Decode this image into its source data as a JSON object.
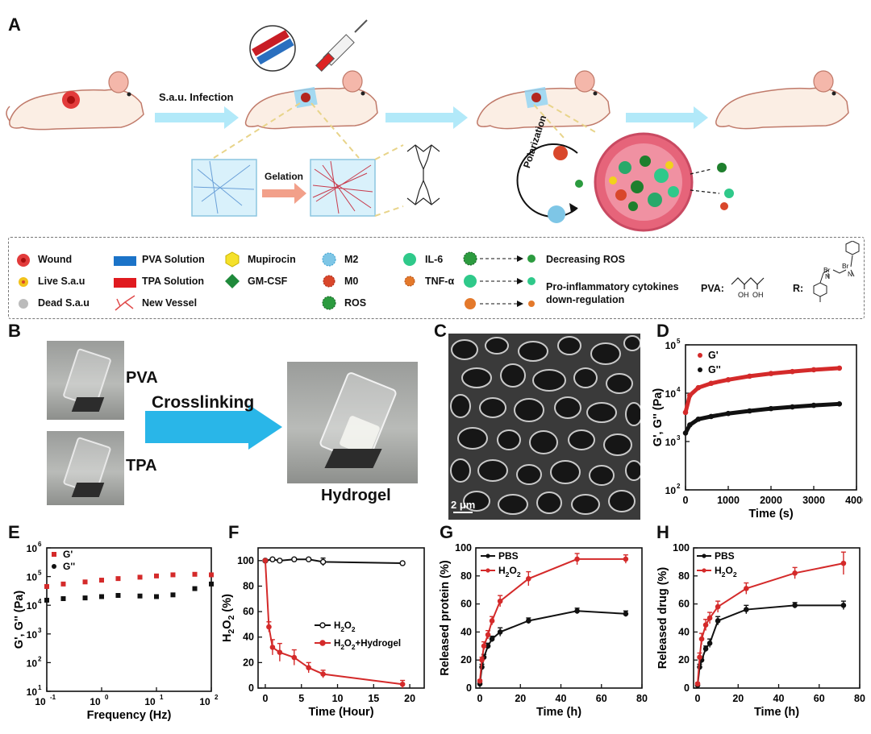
{
  "panels": {
    "A": "A",
    "B": "B",
    "C": "C",
    "D": "D",
    "E": "E",
    "F": "F",
    "G": "G",
    "H": "H"
  },
  "schematic": {
    "infection": "S.a.u. Infection",
    "gelation": "Gelation",
    "polarization": "Polarization"
  },
  "legend": {
    "wound": "Wound",
    "live": "Live S.a.u",
    "dead": "Dead S.a.u",
    "pva_sol": "PVA Solution",
    "tpa_sol": "TPA Solution",
    "vessel": "New Vessel",
    "mupirocin": "Mupirocin",
    "gmcsf": "GM-CSF",
    "m2": "M2",
    "m0": "M0",
    "ros": "ROS",
    "il6": "IL-6",
    "tnf": "TNF-α",
    "dec_ros": "Decreasing  ROS",
    "proinf1": "Pro-inflammatory cytokines",
    "proinf2": "down-regulation",
    "pva_label": "PVA:",
    "r_label": "R:",
    "oh1": "OH",
    "oh2": "OH",
    "br1": "Br",
    "br2": "Br",
    "n1": "N",
    "n2": "N"
  },
  "panelB": {
    "pva": "PVA",
    "tpa": "TPA",
    "crosslinking": "Crosslinking",
    "hydrogel": "Hydrogel"
  },
  "panelC": {
    "scale": "2 μm"
  },
  "colors": {
    "red": "#d42a2a",
    "black": "#111111",
    "arrow": "#29b6e8",
    "legendBorder": "#777777"
  },
  "chart_data": [
    {
      "id": "D",
      "type": "line",
      "xlabel": "Time (s)",
      "ylabel": "G', G'' (Pa)",
      "yscale": "log",
      "xlim": [
        0,
        4000
      ],
      "ylim": [
        100,
        100000
      ],
      "xticks": [
        "0",
        "1000",
        "2000",
        "3000",
        "4000"
      ],
      "yticks": [
        "10",
        "10",
        "10",
        "10"
      ],
      "yexp": [
        "2",
        "3",
        "4",
        "5"
      ],
      "series": [
        {
          "name": "G'",
          "color": "#d42a2a",
          "x": [
            0,
            100,
            300,
            600,
            1000,
            1500,
            2000,
            2500,
            3000,
            3600
          ],
          "y": [
            4000,
            9000,
            13000,
            16000,
            19000,
            22500,
            25500,
            28000,
            30500,
            33000
          ]
        },
        {
          "name": "G''",
          "color": "#111111",
          "x": [
            0,
            100,
            300,
            600,
            1000,
            1500,
            2000,
            2500,
            3000,
            3600
          ],
          "y": [
            1500,
            2200,
            2900,
            3300,
            3800,
            4300,
            4800,
            5200,
            5600,
            6000
          ]
        }
      ]
    },
    {
      "id": "E",
      "type": "scatter",
      "xlabel": "Frequency (Hz)",
      "ylabel": "G', G'' (Pa)",
      "xscale": "log",
      "yscale": "log",
      "xlim": [
        0.1,
        100
      ],
      "ylim": [
        10,
        1000000
      ],
      "xticks": [
        "10",
        "10",
        "10",
        "10"
      ],
      "xexp": [
        "-1",
        "0",
        "1",
        "2"
      ],
      "yticks": [
        "10",
        "10",
        "10",
        "10",
        "10",
        "10"
      ],
      "yexp": [
        "1",
        "2",
        "3",
        "4",
        "5",
        "6"
      ],
      "series": [
        {
          "name": "G'",
          "color": "#d42a2a",
          "x": [
            0.1,
            0.2,
            0.5,
            1,
            2,
            5,
            10,
            20,
            50,
            100
          ],
          "y": [
            45000,
            55000,
            65000,
            75000,
            85000,
            95000,
            105000,
            115000,
            120000,
            115000
          ]
        },
        {
          "name": "G''",
          "color": "#111111",
          "x": [
            0.1,
            0.2,
            0.5,
            1,
            2,
            5,
            10,
            20,
            50,
            100
          ],
          "y": [
            15000,
            17000,
            18000,
            20000,
            22000,
            21000,
            20000,
            23000,
            38000,
            55000
          ]
        }
      ]
    },
    {
      "id": "F",
      "type": "line",
      "xlabel": "Time (Hour)",
      "ylabel": "H2O2 (%)",
      "ylabel_base": "H",
      "ylabel_sub": "2",
      "ylabel_mid": "O",
      "ylabel_end": " (%)",
      "xlim": [
        -1,
        22
      ],
      "ylim": [
        0,
        110
      ],
      "xticks": [
        "0",
        "5",
        "10",
        "15",
        "20"
      ],
      "yticks": [
        "0",
        "20",
        "40",
        "60",
        "80",
        "100"
      ],
      "series": [
        {
          "name": "H2O2",
          "label_base": "H",
          "label_sub": "2",
          "label_mid": "O",
          "label_sub2": "2",
          "label_end": "",
          "color": "#111111",
          "x": [
            0,
            1,
            2,
            4,
            6,
            8,
            19
          ],
          "y": [
            100,
            101,
            100,
            101,
            101,
            99,
            98
          ],
          "err": [
            1,
            1,
            1,
            1,
            1,
            3,
            1
          ]
        },
        {
          "name": "H2O2+Hydrogel",
          "label_base": "H",
          "label_sub": "2",
          "label_mid": "O",
          "label_sub2": "2",
          "label_end": "+Hydrogel",
          "color": "#d42a2a",
          "x": [
            0,
            0.5,
            1,
            2,
            4,
            6,
            8,
            19
          ],
          "y": [
            100,
            48,
            32,
            28,
            24,
            16,
            11,
            3
          ],
          "err": [
            1,
            4,
            6,
            7,
            6,
            4,
            3,
            3
          ]
        }
      ]
    },
    {
      "id": "G",
      "type": "line",
      "xlabel": "Time (h)",
      "ylabel": "Released protein (%)",
      "xlim": [
        -2,
        80
      ],
      "ylim": [
        0,
        100
      ],
      "xticks": [
        "0",
        "20",
        "40",
        "60",
        "80"
      ],
      "yticks": [
        "0",
        "20",
        "40",
        "60",
        "80",
        "100"
      ],
      "series": [
        {
          "name": "PBS",
          "color": "#111111",
          "x": [
            0,
            1,
            2,
            4,
            6,
            10,
            24,
            48,
            72
          ],
          "y": [
            3,
            15,
            22,
            30,
            35,
            40,
            48,
            55,
            53
          ],
          "err": [
            1,
            2,
            2,
            2,
            2,
            3,
            2,
            2,
            2
          ]
        },
        {
          "name": "H2O2",
          "label_base": "H",
          "label_sub": "2",
          "label_mid": "O",
          "label_sub2": "2",
          "color": "#d42a2a",
          "x": [
            0,
            1,
            2,
            4,
            6,
            10,
            24,
            48,
            72
          ],
          "y": [
            5,
            20,
            30,
            38,
            48,
            62,
            78,
            92,
            92
          ],
          "err": [
            1,
            2,
            3,
            3,
            3,
            4,
            5,
            4,
            3
          ]
        }
      ]
    },
    {
      "id": "H",
      "type": "line",
      "xlabel": "Time (h)",
      "ylabel": "Released drug (%)",
      "xlim": [
        -2,
        80
      ],
      "ylim": [
        0,
        100
      ],
      "xticks": [
        "0",
        "20",
        "40",
        "60",
        "80"
      ],
      "yticks": [
        "0",
        "20",
        "40",
        "60",
        "80",
        "100"
      ],
      "series": [
        {
          "name": "PBS",
          "color": "#111111",
          "x": [
            0,
            1,
            2,
            4,
            6,
            10,
            24,
            48,
            72
          ],
          "y": [
            2,
            15,
            20,
            28,
            32,
            48,
            56,
            59,
            59
          ],
          "err": [
            1,
            2,
            2,
            2,
            3,
            3,
            3,
            2,
            3
          ]
        },
        {
          "name": "H2O2",
          "label_base": "H",
          "label_sub": "2",
          "label_mid": "O",
          "label_sub2": "2",
          "color": "#d42a2a",
          "x": [
            0,
            1,
            2,
            4,
            6,
            10,
            24,
            48,
            72
          ],
          "y": [
            3,
            22,
            35,
            45,
            50,
            58,
            71,
            82,
            89
          ],
          "err": [
            1,
            3,
            4,
            4,
            4,
            4,
            4,
            4,
            8
          ]
        }
      ]
    }
  ]
}
